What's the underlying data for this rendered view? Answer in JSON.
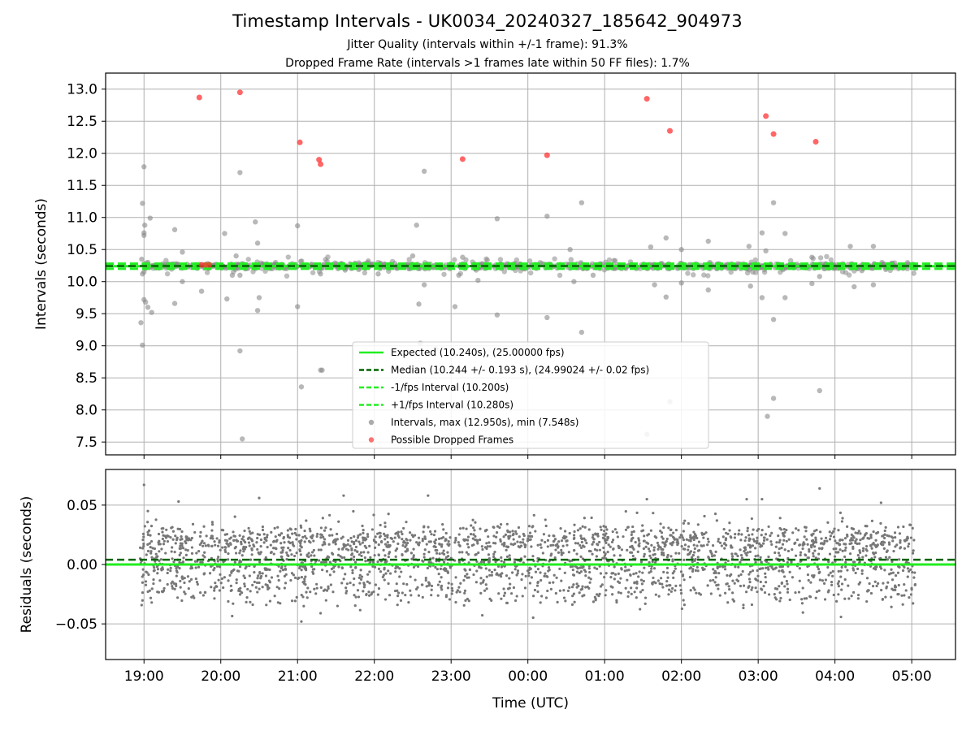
{
  "header": {
    "title": "Timestamp Intervals - UK0034_20240327_185642_904973",
    "subtitle1": "Jitter Quality (intervals within +/-1 frame): 91.3%",
    "subtitle2": "Dropped Frame Rate (intervals >1 frames late within 50 FF files): 1.7%"
  },
  "chart_data": [
    {
      "type": "scatter",
      "ylabel": "Intervals (seconds)",
      "ylim": [
        7.3,
        13.25
      ],
      "y_ticks": [
        "7.5",
        "8.0",
        "8.5",
        "9.0",
        "9.5",
        "10.0",
        "10.5",
        "11.0",
        "11.5",
        "12.0",
        "12.5",
        "13.0"
      ],
      "y_tick_values": [
        7.5,
        8.0,
        8.5,
        9.0,
        9.5,
        10.0,
        10.5,
        11.0,
        11.5,
        12.0,
        12.5,
        13.0
      ],
      "grid": true,
      "legend_placement": "lower-center",
      "lines": [
        {
          "name": "Expected (10.240s), (25.00000 fps)",
          "y": 10.24,
          "color": "#22ee22",
          "style": "solid"
        },
        {
          "name": "Median (10.244 +/- 0.193 s), (24.99024 +/- 0.02 fps)",
          "y": 10.244,
          "color": "#006400",
          "style": "dashed"
        },
        {
          "name": "-1/fps Interval (10.200s)",
          "y": 10.2,
          "color": "#22ee22",
          "style": "dashed"
        },
        {
          "name": "+1/fps Interval (10.280s)",
          "y": 10.28,
          "color": "#22ee22",
          "style": "dashed"
        }
      ],
      "series": [
        {
          "name": "Intervals, max (12.950s), min (7.548s)",
          "color": "#888888",
          "points": [
            [
              19.0,
              11.79
            ],
            [
              18.98,
              11.22
            ],
            [
              19.01,
              10.88
            ],
            [
              19.0,
              10.76
            ],
            [
              19.0,
              10.72
            ],
            [
              19.08,
              10.99
            ],
            [
              18.97,
              10.35
            ],
            [
              19.05,
              10.3
            ],
            [
              19.0,
              10.15
            ],
            [
              18.98,
              10.12
            ],
            [
              19.0,
              9.72
            ],
            [
              19.02,
              9.68
            ],
            [
              19.05,
              9.6
            ],
            [
              19.1,
              9.52
            ],
            [
              18.96,
              9.36
            ],
            [
              18.98,
              9.01
            ],
            [
              19.4,
              10.81
            ],
            [
              19.5,
              10.46
            ],
            [
              19.5,
              10.0
            ],
            [
              19.4,
              9.66
            ],
            [
              19.75,
              9.85
            ],
            [
              20.05,
              10.75
            ],
            [
              20.2,
              10.4
            ],
            [
              20.15,
              10.1
            ],
            [
              20.25,
              10.1
            ],
            [
              20.08,
              9.73
            ],
            [
              20.25,
              11.7
            ],
            [
              20.25,
              8.92
            ],
            [
              20.28,
              7.548
            ],
            [
              20.45,
              10.93
            ],
            [
              20.48,
              10.6
            ],
            [
              20.5,
              9.75
            ],
            [
              20.48,
              9.55
            ],
            [
              21.0,
              10.87
            ],
            [
              21.0,
              9.61
            ],
            [
              21.05,
              8.36
            ],
            [
              21.3,
              8.62
            ],
            [
              21.32,
              8.62
            ],
            [
              21.3,
              10.12
            ],
            [
              21.62,
              10.18
            ],
            [
              22.05,
              10.12
            ],
            [
              22.55,
              10.88
            ],
            [
              22.5,
              10.4
            ],
            [
              22.58,
              9.65
            ],
            [
              22.8,
              8.95
            ],
            [
              22.65,
              11.72
            ],
            [
              22.65,
              9.95
            ],
            [
              22.6,
              9.04
            ],
            [
              23.1,
              10.1
            ],
            [
              23.15,
              10.38
            ],
            [
              23.05,
              9.61
            ],
            [
              23.35,
              10.02
            ],
            [
              23.6,
              10.98
            ],
            [
              23.6,
              9.48
            ],
            [
              24.25,
              11.02
            ],
            [
              24.25,
              9.44
            ],
            [
              24.55,
              10.5
            ],
            [
              24.6,
              10.0
            ],
            [
              24.7,
              11.23
            ],
            [
              24.7,
              9.21
            ],
            [
              24.85,
              10.1
            ],
            [
              25.6,
              10.54
            ],
            [
              25.8,
              10.68
            ],
            [
              25.8,
              9.76
            ],
            [
              26.0,
              10.5
            ],
            [
              26.0,
              9.98
            ],
            [
              25.65,
              9.95
            ],
            [
              26.35,
              10.63
            ],
            [
              26.35,
              9.87
            ],
            [
              26.88,
              10.55
            ],
            [
              26.9,
              9.93
            ],
            [
              27.05,
              10.76
            ],
            [
              27.05,
              9.75
            ],
            [
              27.2,
              11.23
            ],
            [
              27.2,
              9.41
            ],
            [
              27.1,
              10.48
            ],
            [
              27.35,
              10.75
            ],
            [
              27.35,
              9.75
            ],
            [
              27.12,
              7.9
            ],
            [
              27.2,
              8.18
            ],
            [
              27.8,
              8.3
            ],
            [
              27.7,
              10.38
            ],
            [
              27.7,
              9.97
            ],
            [
              27.8,
              10.08
            ],
            [
              28.2,
              10.55
            ],
            [
              28.25,
              9.92
            ],
            [
              28.5,
              10.55
            ],
            [
              28.5,
              9.95
            ],
            [
              28.35,
              10.17
            ],
            [
              25.85,
              8.13
            ],
            [
              25.55,
              7.62
            ]
          ]
        },
        {
          "name": "Possible Dropped Frames",
          "color": "#ff3333",
          "points": [
            [
              19.72,
              12.87
            ],
            [
              20.25,
              12.95
            ],
            [
              21.03,
              12.17
            ],
            [
              21.28,
              11.9
            ],
            [
              21.3,
              11.83
            ],
            [
              23.15,
              11.91
            ],
            [
              24.25,
              11.97
            ],
            [
              25.55,
              12.85
            ],
            [
              25.85,
              12.35
            ],
            [
              27.1,
              12.58
            ],
            [
              27.2,
              12.3
            ],
            [
              27.75,
              12.18
            ],
            [
              19.75,
              10.26
            ],
            [
              19.8,
              10.26
            ],
            [
              19.85,
              10.26
            ]
          ]
        }
      ]
    },
    {
      "type": "scatter",
      "ylabel": "Residuals (seconds)",
      "xlabel": "Time (UTC)",
      "ylim": [
        -0.08,
        0.08
      ],
      "y_ticks": [
        "−0.05",
        "0.00",
        "0.05"
      ],
      "y_tick_values": [
        -0.05,
        0.0,
        0.05
      ],
      "x_ticks": [
        "19:00",
        "20:00",
        "21:00",
        "22:00",
        "23:00",
        "00:00",
        "01:00",
        "02:00",
        "03:00",
        "04:00",
        "05:00"
      ],
      "x_tick_values": [
        19,
        20,
        21,
        22,
        23,
        24,
        25,
        26,
        27,
        28,
        29
      ],
      "xlim": [
        18.5,
        29.57
      ],
      "grid": true,
      "lines": [
        {
          "name": "Expected",
          "y": 0.0,
          "color": "#22ee22",
          "style": "solid"
        },
        {
          "name": "Median",
          "y": 0.004,
          "color": "#006400",
          "style": "dashed"
        }
      ],
      "series": [
        {
          "name": "Residuals",
          "color": "#777777",
          "x_range": [
            18.95,
            29.05
          ],
          "levels": [
            -0.02,
            0.0,
            0.02
          ],
          "outliers": [
            [
              19.0,
              0.067
            ],
            [
              19.05,
              0.045
            ],
            [
              19.1,
              -0.032
            ],
            [
              19.45,
              0.053
            ],
            [
              20.5,
              0.056
            ],
            [
              21.05,
              -0.048
            ],
            [
              21.3,
              -0.041
            ],
            [
              21.6,
              0.058
            ],
            [
              22.7,
              0.058
            ],
            [
              25.55,
              0.055
            ],
            [
              26.85,
              0.055
            ],
            [
              27.05,
              0.055
            ],
            [
              27.8,
              0.064
            ],
            [
              28.6,
              0.052
            ],
            [
              29.0,
              -0.021
            ]
          ]
        }
      ]
    }
  ]
}
